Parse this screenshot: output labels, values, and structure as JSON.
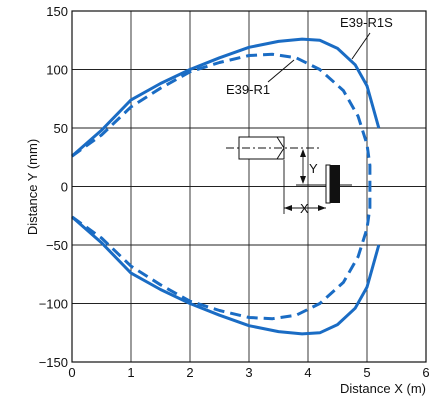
{
  "chart_data": {
    "type": "line",
    "xlabel": "Distance X (m)",
    "ylabel": "Distance Y (mm)",
    "xlim": [
      0,
      6
    ],
    "ylim": [
      -150,
      150
    ],
    "x_ticks": [
      0,
      1,
      2,
      3,
      4,
      5,
      6
    ],
    "y_ticks": [
      -150,
      -100,
      -50,
      0,
      50,
      100,
      150
    ],
    "y_tick_labels": [
      "−150",
      "−100",
      "−50",
      "0",
      "50",
      "100",
      "150"
    ],
    "grid": true,
    "line_color": "#1a6cc4",
    "series": [
      {
        "name": "E39-R1S",
        "style": "solid",
        "points": [
          [
            0,
            26
          ],
          [
            0.5,
            48
          ],
          [
            1,
            74
          ],
          [
            1.5,
            88
          ],
          [
            2,
            100
          ],
          [
            2.5,
            110
          ],
          [
            3,
            119
          ],
          [
            3.5,
            124
          ],
          [
            3.9,
            126
          ],
          [
            4.2,
            125
          ],
          [
            4.5,
            118
          ],
          [
            4.8,
            104
          ],
          [
            5.0,
            86
          ],
          [
            5.1,
            68
          ],
          [
            5.2,
            50
          ]
        ],
        "points_lower": [
          [
            0,
            -26
          ],
          [
            0.5,
            -48
          ],
          [
            1,
            -74
          ],
          [
            1.5,
            -88
          ],
          [
            2,
            -100
          ],
          [
            2.5,
            -110
          ],
          [
            3,
            -119
          ],
          [
            3.5,
            -124
          ],
          [
            3.9,
            -126
          ],
          [
            4.2,
            -125
          ],
          [
            4.5,
            -118
          ],
          [
            4.8,
            -104
          ],
          [
            5.0,
            -86
          ],
          [
            5.1,
            -68
          ],
          [
            5.2,
            -50
          ]
        ]
      },
      {
        "name": "E39-R1",
        "style": "dashed",
        "points": [
          [
            0,
            26
          ],
          [
            0.5,
            44
          ],
          [
            1,
            68
          ],
          [
            1.5,
            84
          ],
          [
            2,
            98
          ],
          [
            2.5,
            106
          ],
          [
            3,
            112
          ],
          [
            3.4,
            113
          ],
          [
            3.8,
            110
          ],
          [
            4.2,
            100
          ],
          [
            4.6,
            82
          ],
          [
            4.85,
            60
          ],
          [
            5.0,
            36
          ],
          [
            5.05,
            18
          ],
          [
            5.05,
            0
          ],
          [
            5.05,
            -18
          ],
          [
            5.0,
            -36
          ],
          [
            4.85,
            -60
          ],
          [
            4.6,
            -82
          ],
          [
            4.2,
            -100
          ],
          [
            3.8,
            -110
          ],
          [
            3.4,
            -113
          ],
          [
            3,
            -112
          ],
          [
            2.5,
            -106
          ],
          [
            2,
            -98
          ],
          [
            1.5,
            -84
          ],
          [
            1,
            -68
          ],
          [
            0.5,
            -44
          ],
          [
            0,
            -26
          ]
        ]
      }
    ],
    "annotations": {
      "label_r1s": "E39-R1S",
      "label_r1": "E39-R1",
      "diagram_y": "Y",
      "diagram_x": "X"
    }
  }
}
